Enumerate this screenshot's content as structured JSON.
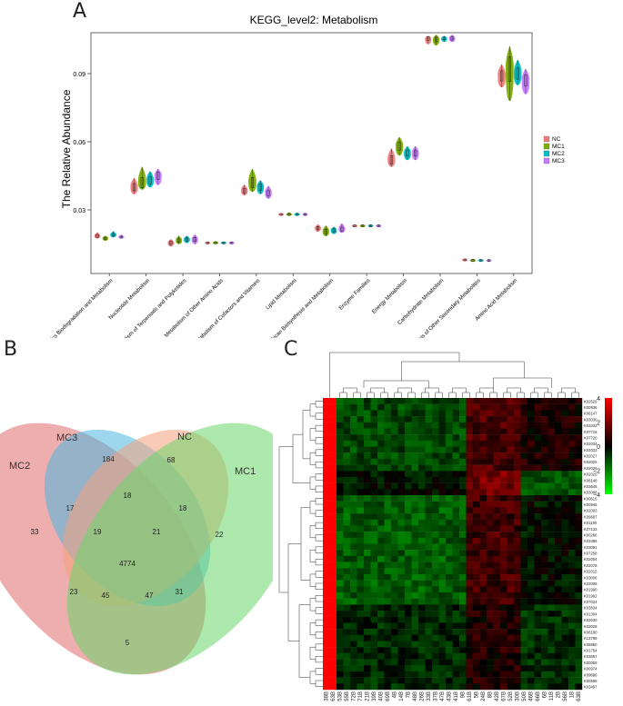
{
  "panel_letters": {
    "a": "A",
    "b": "B",
    "c": "C"
  },
  "chart_data": [
    {
      "type": "violin",
      "title": "KEGG_level2: Metabolism",
      "ylabel": "The Relative Abundance",
      "xlabel": "",
      "yticks": [
        0.03,
        0.06,
        0.09
      ],
      "ytick_labels": [
        "0.03",
        "0.06",
        "0.09"
      ],
      "ylim": [
        0.002,
        0.108
      ],
      "legend_position": "right",
      "groups": [
        "NC",
        "MC1",
        "MC2",
        "MC3"
      ],
      "group_colors": [
        "#f07b7b",
        "#7cae00",
        "#00bfc4",
        "#c77cff"
      ],
      "categories": [
        "Xenobiotics Biodegradation and Metabolism",
        "Nucleotide Metabolism",
        "Metabolism of Terpenoids and Polyketides",
        "Metabolism of Other Amino Acids",
        "Metabolism of Cofactors and Vitamins",
        "Lipid Metabolism",
        "Glycan Biosynthesis and Metabolism",
        "Enzyme Families",
        "Energy Metabolism",
        "Carbohydrate Metabolism",
        "Biosynthesis of Other Secondary Metabolites",
        "Amino Acid Metabolism"
      ],
      "series": [
        {
          "name": "NC",
          "medians": [
            0.0185,
            0.04,
            0.0155,
            0.0155,
            0.0385,
            0.028,
            0.022,
            0.023,
            0.052,
            0.1055,
            0.008,
            0.089
          ],
          "ranges": [
            [
              0.0175,
              0.02
            ],
            [
              0.037,
              0.044
            ],
            [
              0.014,
              0.017
            ],
            [
              0.015,
              0.016
            ],
            [
              0.0365,
              0.041
            ],
            [
              0.0275,
              0.0285
            ],
            [
              0.0205,
              0.0235
            ],
            [
              0.0225,
              0.0235
            ],
            [
              0.049,
              0.057
            ],
            [
              0.103,
              0.1065
            ],
            [
              0.0075,
              0.0085
            ],
            [
              0.084,
              0.094
            ]
          ]
        },
        {
          "name": "MC1",
          "medians": [
            0.0175,
            0.042,
            0.0165,
            0.0155,
            0.042,
            0.028,
            0.0205,
            0.023,
            0.058,
            0.105,
            0.0078,
            0.092
          ],
          "ranges": [
            [
              0.0165,
              0.0185
            ],
            [
              0.039,
              0.049
            ],
            [
              0.015,
              0.0185
            ],
            [
              0.015,
              0.0162
            ],
            [
              0.038,
              0.048
            ],
            [
              0.0275,
              0.0288
            ],
            [
              0.0185,
              0.023
            ],
            [
              0.0225,
              0.0235
            ],
            [
              0.054,
              0.062
            ],
            [
              0.1025,
              0.107
            ],
            [
              0.0072,
              0.0083
            ],
            [
              0.078,
              0.102
            ]
          ]
        },
        {
          "name": "MC2",
          "medians": [
            0.019,
            0.043,
            0.017,
            0.0155,
            0.04,
            0.028,
            0.021,
            0.023,
            0.055,
            0.1055,
            0.0078,
            0.09
          ],
          "ranges": [
            [
              0.018,
              0.0205
            ],
            [
              0.04,
              0.047
            ],
            [
              0.0155,
              0.0185
            ],
            [
              0.015,
              0.016
            ],
            [
              0.037,
              0.043
            ],
            [
              0.0275,
              0.0287
            ],
            [
              0.0195,
              0.0225
            ],
            [
              0.0225,
              0.0235
            ],
            [
              0.052,
              0.058
            ],
            [
              0.104,
              0.1065
            ],
            [
              0.0073,
              0.0082
            ],
            [
              0.085,
              0.096
            ]
          ]
        },
        {
          "name": "MC3",
          "medians": [
            0.018,
            0.045,
            0.017,
            0.0155,
            0.0375,
            0.028,
            0.0215,
            0.023,
            0.055,
            0.1055,
            0.0077,
            0.087
          ],
          "ranges": [
            [
              0.0175,
              0.019
            ],
            [
              0.041,
              0.048
            ],
            [
              0.015,
              0.019
            ],
            [
              0.015,
              0.016
            ],
            [
              0.035,
              0.0405
            ],
            [
              0.0275,
              0.0286
            ],
            [
              0.02,
              0.024
            ],
            [
              0.0225,
              0.0235
            ],
            [
              0.052,
              0.058
            ],
            [
              0.104,
              0.107
            ],
            [
              0.0073,
              0.0082
            ],
            [
              0.081,
              0.092
            ]
          ]
        }
      ]
    },
    {
      "type": "venn",
      "sets": [
        {
          "name": "MC2",
          "color": "#e06c6c"
        },
        {
          "name": "MC3",
          "color": "#4db6e0"
        },
        {
          "name": "NC",
          "color": "#f4a07c"
        },
        {
          "name": "MC1",
          "color": "#6ad66a"
        }
      ],
      "regions": [
        {
          "sets": [
            "MC2"
          ],
          "count": "33"
        },
        {
          "sets": [
            "MC3"
          ],
          "count": "184"
        },
        {
          "sets": [
            "NC"
          ],
          "count": "68"
        },
        {
          "sets": [
            "MC1"
          ],
          "count": "22"
        },
        {
          "sets": [
            "MC2",
            "MC3"
          ],
          "count": "17"
        },
        {
          "sets": [
            "MC3",
            "NC"
          ],
          "count": "18"
        },
        {
          "sets": [
            "NC",
            "MC1"
          ],
          "count": "18"
        },
        {
          "sets": [
            "MC2",
            "MC3",
            "NC"
          ],
          "count": "19"
        },
        {
          "sets": [
            "MC3",
            "NC",
            "MC1"
          ],
          "count": "21"
        },
        {
          "sets": [
            "MC2",
            "MC3",
            "NC",
            "MC1"
          ],
          "count": "4774"
        },
        {
          "sets": [
            "MC2",
            "NC"
          ],
          "count": "23"
        },
        {
          "sets": [
            "MC3",
            "MC1"
          ],
          "count": "31"
        },
        {
          "sets": [
            "MC2",
            "NC",
            "MC1"
          ],
          "count": "45"
        },
        {
          "sets": [
            "MC2",
            "MC3",
            "MC1"
          ],
          "count": "47"
        },
        {
          "sets": [
            "MC2",
            "MC1"
          ],
          "count": "5"
        }
      ]
    },
    {
      "type": "heatmap",
      "colorbar_ticks": [
        "4",
        "2",
        "0",
        "−2",
        "−4"
      ],
      "colorbar_values": [
        4,
        2,
        0,
        -2,
        -4
      ],
      "color_low": "#00ff00",
      "color_mid": "#000000",
      "color_high": "#ff0000",
      "rows": [
        "K02529",
        "K00936",
        "K06147",
        "K03030",
        "K03332",
        "K07718",
        "K07720",
        "K02034",
        "K02033",
        "K02027",
        "K02025",
        "K02026",
        "K02025",
        "K06148",
        "K03648",
        "K03088",
        "K00615",
        "K00945",
        "K02003",
        "K09687",
        "K01190",
        "K07133",
        "K00266",
        "K03496",
        "K03091",
        "K07258",
        "K02004",
        "K02078",
        "K02015",
        "K03006",
        "K02008",
        "K01990",
        "K01992",
        "K07024",
        "K03634",
        "K01304",
        "K02030",
        "K02028",
        "K06180",
        "K13789",
        "K06950",
        "K01754",
        "K03657",
        "K00059",
        "K00974",
        "K09686",
        "K00599",
        "K03497"
      ],
      "columns": [
        "38B",
        "63B",
        "53B",
        "55B",
        "72B",
        "71B",
        "21B",
        "39B",
        "40B",
        "69B",
        "4B",
        "14B",
        "7B",
        "48B",
        "26B",
        "33B",
        "37B",
        "47B",
        "43B",
        "41B",
        "9B",
        "61B",
        "5B",
        "24B",
        "8B",
        "42B",
        "67B",
        "52B",
        "30B",
        "50B",
        "46B",
        "66B",
        "6B",
        "11B",
        "2B",
        "56B",
        "1B",
        "63B"
      ],
      "annotation_color": "#ff0000"
    }
  ]
}
